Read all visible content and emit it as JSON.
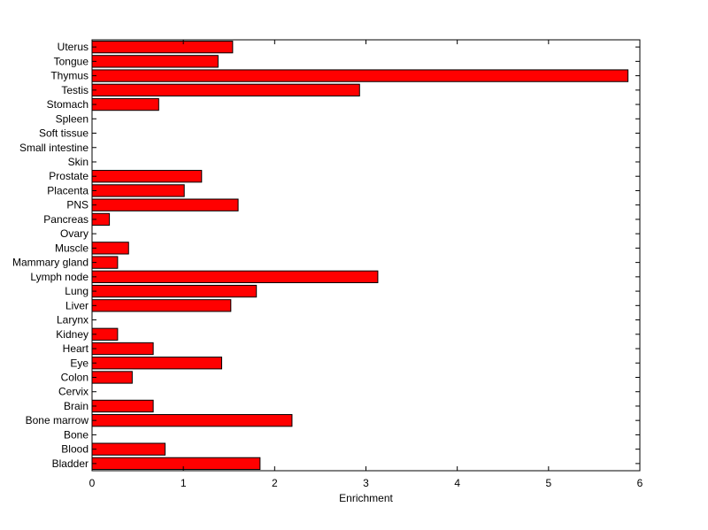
{
  "chart_data": {
    "type": "bar",
    "orientation": "horizontal",
    "categories": [
      "Bladder",
      "Blood",
      "Bone",
      "Bone marrow",
      "Brain",
      "Cervix",
      "Colon",
      "Eye",
      "Heart",
      "Kidney",
      "Larynx",
      "Liver",
      "Lung",
      "Lymph node",
      "Mammary gland",
      "Muscle",
      "Ovary",
      "Pancreas",
      "PNS",
      "Placenta",
      "Prostate",
      "Skin",
      "Small intestine",
      "Soft tissue",
      "Spleen",
      "Stomach",
      "Testis",
      "Thymus",
      "Tongue",
      "Uterus"
    ],
    "values": [
      1.84,
      0.8,
      0,
      2.19,
      0.67,
      0,
      0.44,
      1.42,
      0.67,
      0.28,
      0,
      1.52,
      1.8,
      3.13,
      0.28,
      0.4,
      0,
      0.19,
      1.6,
      1.01,
      1.2,
      0,
      0,
      0,
      0,
      0.73,
      2.93,
      5.87,
      1.38,
      1.54
    ],
    "xlabel": "Enrichment",
    "ylabel": "",
    "title": "",
    "xlim": [
      0,
      6
    ],
    "xticks": [
      "0",
      "1",
      "2",
      "3",
      "4",
      "5",
      "6"
    ],
    "bar_color": "#ff0000",
    "grid": false
  }
}
